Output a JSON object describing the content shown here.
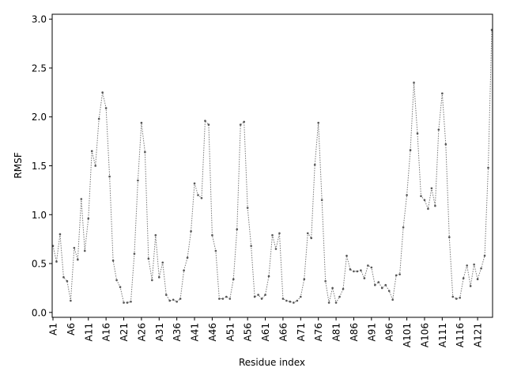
{
  "chart_data": {
    "type": "line",
    "title": "",
    "xlabel": "Residue index",
    "ylabel": "RMSF",
    "x_tick_labels": [
      "A1",
      "A6",
      "A11",
      "A16",
      "A21",
      "A26",
      "A31",
      "A36",
      "A41",
      "A46",
      "A51",
      "A56",
      "A61",
      "A66",
      "A71",
      "A76",
      "A81",
      "A86",
      "A91",
      "A96",
      "A101",
      "A106",
      "A111",
      "A116",
      "A121"
    ],
    "y_ticks": [
      0.0,
      0.5,
      1.0,
      1.5,
      2.0,
      2.5,
      3.0
    ],
    "y_tick_labels": [
      "0.0",
      "0.5",
      "1.0",
      "1.5",
      "2.0",
      "2.5",
      "3.0"
    ],
    "ylim": [
      -0.05,
      3.05
    ],
    "grid": false,
    "series": [
      {
        "style": "dotted line with point markers",
        "color": "#777777",
        "values": [
          0.68,
          0.52,
          0.8,
          0.36,
          0.32,
          0.12,
          0.66,
          0.54,
          1.16,
          0.63,
          0.96,
          1.65,
          1.5,
          1.98,
          2.25,
          2.09,
          1.39,
          0.53,
          0.33,
          0.26,
          0.1,
          0.1,
          0.11,
          0.6,
          1.35,
          1.94,
          1.64,
          0.55,
          0.33,
          0.79,
          0.36,
          0.51,
          0.18,
          0.12,
          0.13,
          0.11,
          0.14,
          0.43,
          0.56,
          0.83,
          1.32,
          1.2,
          1.17,
          1.96,
          1.92,
          0.79,
          0.63,
          0.14,
          0.14,
          0.16,
          0.14,
          0.34,
          0.85,
          1.92,
          1.95,
          1.07,
          0.68,
          0.16,
          0.18,
          0.14,
          0.18,
          0.37,
          0.79,
          0.65,
          0.81,
          0.14,
          0.12,
          0.11,
          0.1,
          0.12,
          0.16,
          0.34,
          0.81,
          0.76,
          1.51,
          1.94,
          1.15,
          0.32,
          0.1,
          0.25,
          0.1,
          0.16,
          0.24,
          0.58,
          0.44,
          0.42,
          0.42,
          0.43,
          0.35,
          0.48,
          0.46,
          0.28,
          0.31,
          0.25,
          0.28,
          0.22,
          0.13,
          0.38,
          0.39,
          0.87,
          1.2,
          1.66,
          2.35,
          1.83,
          1.19,
          1.15,
          1.06,
          1.27,
          1.09,
          1.87,
          2.24,
          1.72,
          0.77,
          0.16,
          0.14,
          0.15,
          0.35,
          0.48,
          0.27,
          0.49,
          0.34,
          0.45,
          0.58,
          1.48,
          2.89
        ]
      }
    ]
  }
}
